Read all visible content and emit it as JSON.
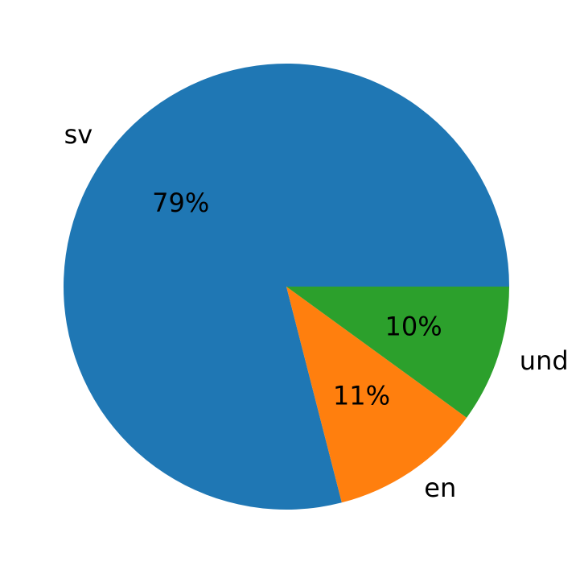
{
  "chart_data": {
    "type": "pie",
    "categories": [
      "sv",
      "en",
      "und"
    ],
    "values": [
      79,
      11,
      10
    ],
    "value_labels": [
      "79%",
      "11%",
      "10%"
    ],
    "colors": [
      "#1f77b4",
      "#ff7f0e",
      "#2ca02c"
    ]
  }
}
